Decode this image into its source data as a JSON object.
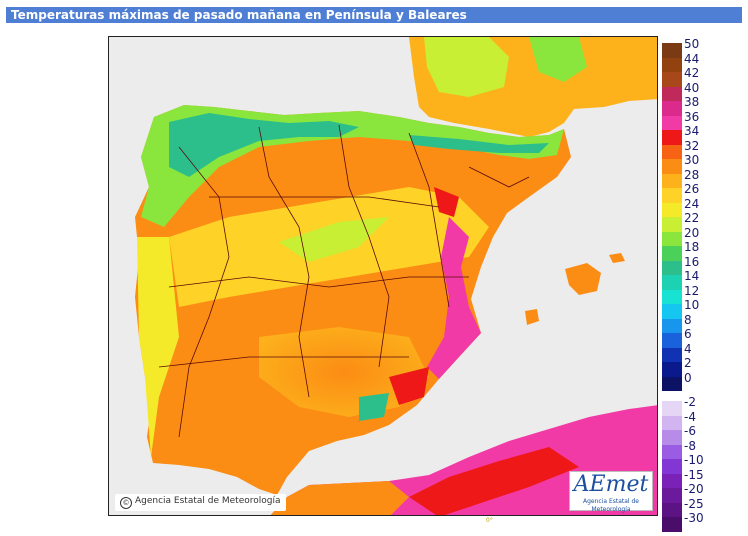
{
  "title": "Temperaturas máximas de pasado mañana en Península y Baleares",
  "credit": "Agencia Estatal de Meteorología",
  "credit_symbol": "©",
  "logo": {
    "brand": "AEmet",
    "subtitle": "Agencia Estatal de Meteorología"
  },
  "footer_mark": "0°",
  "legend": {
    "positive": [
      {
        "label": "50",
        "color": "#7a3a14"
      },
      {
        "label": "44",
        "color": "#92420e"
      },
      {
        "label": "42",
        "color": "#a8471a"
      },
      {
        "label": "40",
        "color": "#c02a5a"
      },
      {
        "label": "38",
        "color": "#dc2a8c"
      },
      {
        "label": "36",
        "color": "#f23aa6"
      },
      {
        "label": "34",
        "color": "#ee1818"
      },
      {
        "label": "32",
        "color": "#f86214"
      },
      {
        "label": "30",
        "color": "#fb8c14"
      },
      {
        "label": "28",
        "color": "#fdb21c"
      },
      {
        "label": "26",
        "color": "#fed226"
      },
      {
        "label": "24",
        "color": "#f4ea2a"
      },
      {
        "label": "22",
        "color": "#c8ef34"
      },
      {
        "label": "20",
        "color": "#8ae63c"
      },
      {
        "label": "18",
        "color": "#4bd05a"
      },
      {
        "label": "16",
        "color": "#2cbf8c"
      },
      {
        "label": "14",
        "color": "#1cd2b2"
      },
      {
        "label": "12",
        "color": "#18e2d2"
      },
      {
        "label": "10",
        "color": "#14c6f0"
      },
      {
        "label": "8",
        "color": "#1896ee"
      },
      {
        "label": "6",
        "color": "#1a62dc"
      },
      {
        "label": "4",
        "color": "#1232b4"
      },
      {
        "label": "2",
        "color": "#0a1a8c"
      },
      {
        "label": "0",
        "color": "#0c1264"
      }
    ],
    "negative": [
      {
        "label": "-2",
        "color": "#e6d6f6"
      },
      {
        "label": "-4",
        "color": "#d2b4f0"
      },
      {
        "label": "-6",
        "color": "#b68ce8"
      },
      {
        "label": "-8",
        "color": "#9a5ce2"
      },
      {
        "label": "-10",
        "color": "#8236d4"
      },
      {
        "label": "-15",
        "color": "#7a22b8"
      },
      {
        "label": "-20",
        "color": "#6c1a9c"
      },
      {
        "label": "-25",
        "color": "#5c1484"
      },
      {
        "label": "-30",
        "color": "#4a0e6a"
      }
    ]
  }
}
